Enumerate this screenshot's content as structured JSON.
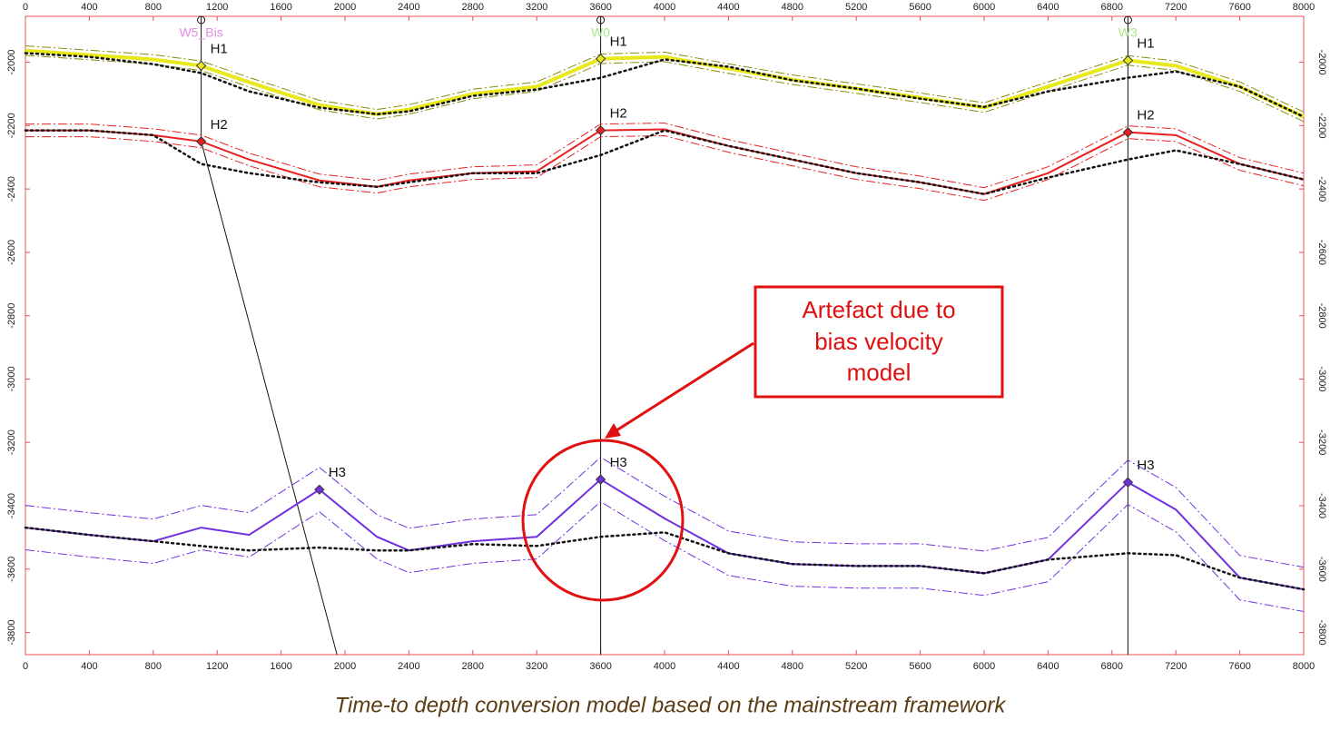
{
  "chart_data": {
    "type": "line",
    "xlim": [
      0,
      8000
    ],
    "ylim": [
      -3870,
      -1855
    ],
    "xticks": [
      0,
      400,
      800,
      1200,
      1600,
      2000,
      2400,
      2800,
      3200,
      3600,
      4000,
      4400,
      4800,
      5200,
      5600,
      6000,
      6400,
      6800,
      7200,
      7600,
      8000
    ],
    "yticks": [
      -2000,
      -2200,
      -2400,
      -2600,
      -2800,
      -3000,
      -3200,
      -3400,
      -3600,
      -3800
    ],
    "x": [
      0,
      400,
      800,
      1100,
      1400,
      1840,
      2200,
      2400,
      2800,
      3200,
      3600,
      4000,
      4400,
      4800,
      5200,
      5600,
      6000,
      6400,
      6900,
      7200,
      7600,
      8000
    ],
    "series": [
      {
        "color": "#e8e81a",
        "style": "solid",
        "error": 15,
        "values": [
          -1963,
          -1977,
          -1991,
          -2011,
          -2063,
          -2135,
          -2164,
          -2149,
          -2100,
          -2077,
          -1989,
          -1983,
          -2020,
          -2055,
          -2083,
          -2112,
          -2143,
          -2077,
          -1994,
          -2011,
          -2077,
          -2172
        ]
      },
      {
        "color": "#111111",
        "style": "dotted",
        "values": [
          -1971,
          -1983,
          -2006,
          -2034,
          -2092,
          -2143,
          -2164,
          -2155,
          -2106,
          -2086,
          -2049,
          -1991,
          -2014,
          -2057,
          -2083,
          -2115,
          -2141,
          -2092,
          -2049,
          -2029,
          -2077,
          -2172
        ]
      },
      {
        "color": "#e82020",
        "style": "solid",
        "error": 20,
        "values": [
          -2215,
          -2215,
          -2230,
          -2250,
          -2307,
          -2373,
          -2393,
          -2373,
          -2350,
          -2344,
          -2215,
          -2212,
          -2264,
          -2307,
          -2350,
          -2379,
          -2416,
          -2350,
          -2221,
          -2230,
          -2321,
          -2370
        ]
      },
      {
        "color": "#111111",
        "style": "dotted",
        "values": [
          -2215,
          -2215,
          -2230,
          -2321,
          -2350,
          -2379,
          -2393,
          -2379,
          -2350,
          -2350,
          -2293,
          -2215,
          -2264,
          -2307,
          -2350,
          -2379,
          -2416,
          -2364,
          -2307,
          -2278,
          -2321,
          -2370
        ]
      },
      {
        "color": "#7030e0",
        "style": "solid",
        "error": 70,
        "values": [
          -3469,
          -3492,
          -3512,
          -3469,
          -3492,
          -3349,
          -3498,
          -3541,
          -3512,
          -3498,
          -3317,
          -3440,
          -3550,
          -3584,
          -3590,
          -3590,
          -3613,
          -3570,
          -3326,
          -3412,
          -3627,
          -3664
        ]
      },
      {
        "color": "#111111",
        "style": "dotted",
        "values": [
          -3469,
          -3492,
          -3512,
          -3527,
          -3541,
          -3532,
          -3541,
          -3541,
          -3521,
          -3527,
          -3498,
          -3484,
          -3550,
          -3584,
          -3590,
          -3590,
          -3613,
          -3570,
          -3550,
          -3556,
          -3627,
          -3664
        ]
      }
    ],
    "wells": [
      {
        "name": "W5_Bis",
        "color": "#e58ce5",
        "x": [
          1100,
          1100,
          1950
        ],
        "y": [
          -1855,
          -2250,
          -3870
        ]
      },
      {
        "name": "W0",
        "color": "#a8e88a",
        "x": [
          3600,
          3600
        ],
        "y": [
          -1855,
          -3870
        ]
      },
      {
        "name": "W3",
        "color": "#a8e88a",
        "x": [
          6900,
          6900
        ],
        "y": [
          -1855,
          -3870
        ]
      }
    ],
    "picks": [
      {
        "label": "H1",
        "color": "#e8e81a",
        "x": 1100,
        "y": -2011
      },
      {
        "label": "H2",
        "color": "#e82020",
        "x": 1100,
        "y": -2250
      },
      {
        "label": "H3",
        "color": "#7030e0",
        "x": 1840,
        "y": -3349
      },
      {
        "label": "H1",
        "color": "#e8e81a",
        "x": 3600,
        "y": -1989
      },
      {
        "label": "H2",
        "color": "#e82020",
        "x": 3600,
        "y": -2215
      },
      {
        "label": "H3",
        "color": "#7030e0",
        "x": 3600,
        "y": -3317
      },
      {
        "label": "H1",
        "color": "#e8e81a",
        "x": 6900,
        "y": -1994
      },
      {
        "label": "H2",
        "color": "#e82020",
        "x": 6900,
        "y": -2221
      },
      {
        "label": "H3",
        "color": "#7030e0",
        "x": 6900,
        "y": -3326
      }
    ],
    "annotation": [
      "Artefact due to",
      "bias velocity",
      "model"
    ],
    "caption": "Time-to depth conversion model based on the mainstream framework"
  }
}
